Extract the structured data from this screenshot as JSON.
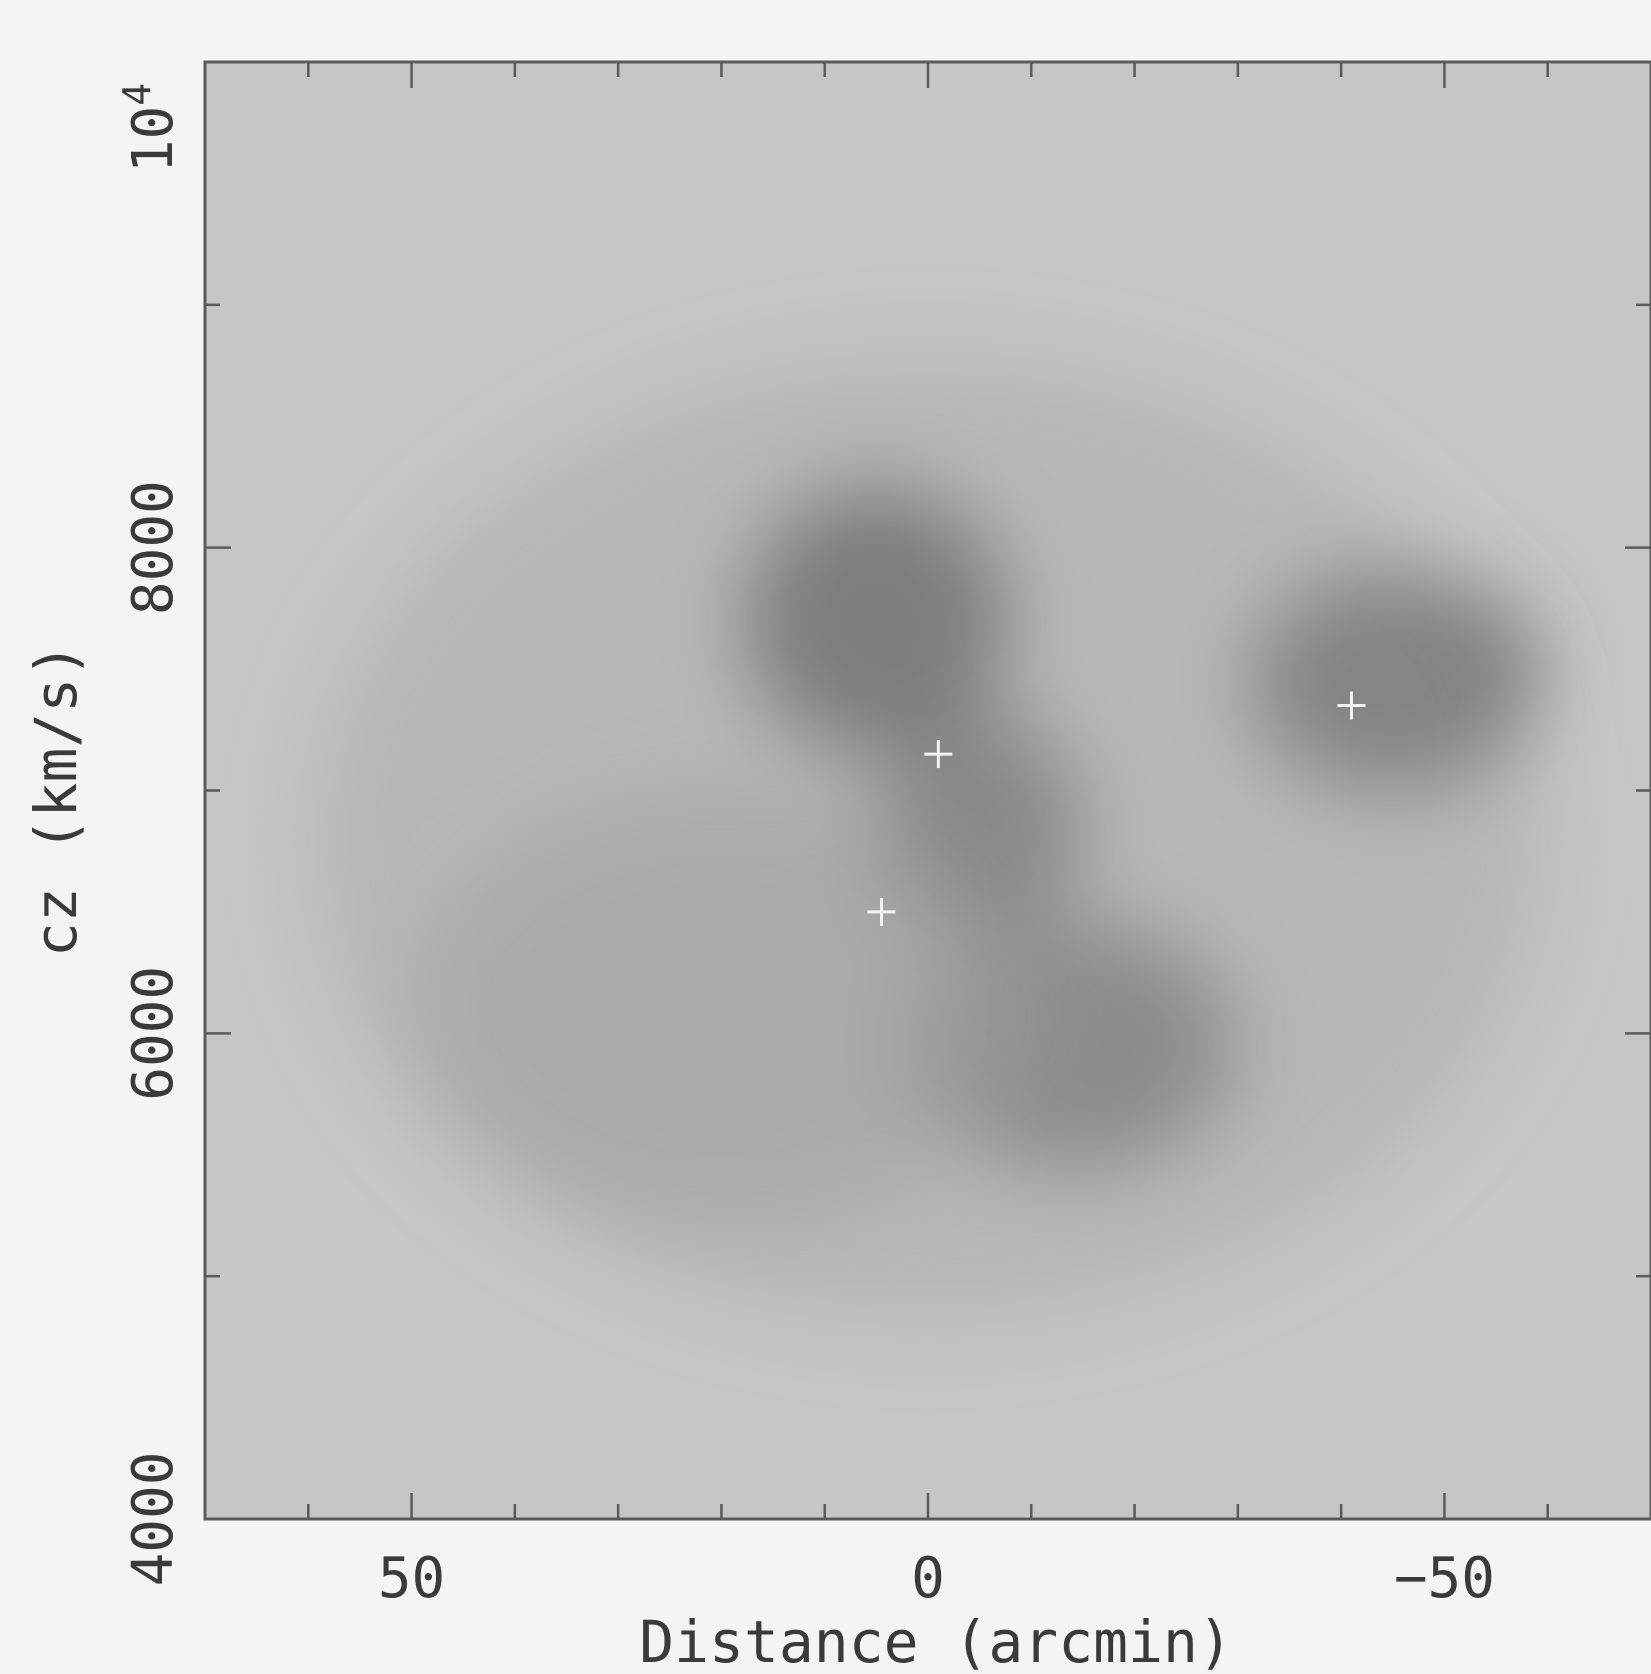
{
  "chart_data": {
    "type": "heatmap",
    "title": "",
    "xlabel": "Distance (arcmin)",
    "ylabel": "cz (km/s)",
    "xlim": [
      70,
      -70
    ],
    "ylim": [
      4000,
      10000
    ],
    "x_tick_labels": [
      {
        "value": 50,
        "label": "50"
      },
      {
        "value": 0,
        "label": "0"
      },
      {
        "value": -50,
        "label": "−50"
      }
    ],
    "x_minor_ticks": [
      60,
      40,
      30,
      20,
      10,
      -10,
      -20,
      -30,
      -40,
      -60
    ],
    "y_tick_labels": [
      {
        "value": 4000,
        "label": "4000"
      },
      {
        "value": 6000,
        "label": "6000"
      },
      {
        "value": 8000,
        "label": "8000"
      },
      {
        "value": 10000,
        "label": "10",
        "exponent": "4"
      }
    ],
    "y_minor_ticks": [
      5000,
      7000,
      9000
    ],
    "colormap": "grayscale (darker = higher density)",
    "background_color": "#c4c4c4",
    "density_peaks": [
      {
        "x": 5,
        "cz": 7700,
        "sx": 13,
        "sy": 560,
        "amp": 0.85
      },
      {
        "x": -5,
        "cz": 6850,
        "sx": 10,
        "sy": 480,
        "amp": 0.75
      },
      {
        "x": -14,
        "cz": 5950,
        "sx": 16,
        "sy": 520,
        "amp": 0.7
      },
      {
        "x": -45,
        "cz": 7450,
        "sx": 14,
        "sy": 460,
        "amp": 0.78
      },
      {
        "x": 20,
        "cz": 6100,
        "sx": 30,
        "sy": 900,
        "amp": 0.3
      },
      {
        "x": 0,
        "cz": 6800,
        "sx": 60,
        "sy": 2000,
        "amp": 0.22
      }
    ],
    "markers": [
      {
        "x": -1,
        "cz": 7150
      },
      {
        "x": 4.5,
        "cz": 6500
      },
      {
        "x": -41,
        "cz": 7350
      }
    ],
    "grid": false,
    "legend": "none"
  }
}
